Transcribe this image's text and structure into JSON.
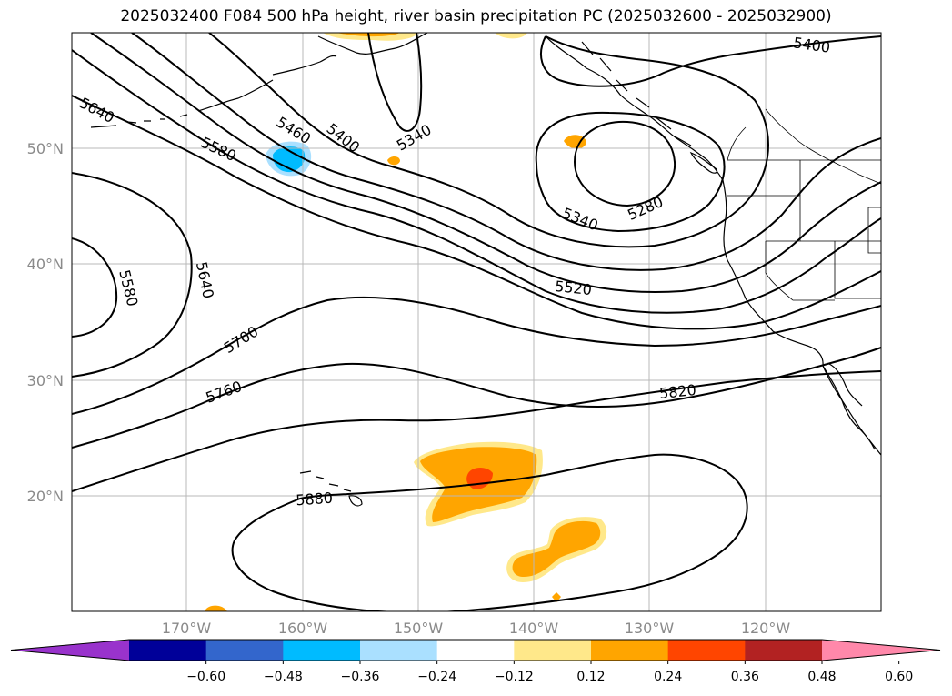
{
  "title": "2025032400 F084 500 hPa height, river basin precipitation PC (2025032600 - 2025032900)",
  "map": {
    "lat_labels": [
      "50°N",
      "40°N",
      "30°N",
      "20°N"
    ],
    "lon_labels": [
      "170°W",
      "160°W",
      "150°W",
      "140°W",
      "130°W",
      "120°W"
    ],
    "contour_labels": [
      "5400",
      "5640",
      "5460",
      "5400",
      "5340",
      "5580",
      "5280",
      "5340",
      "5520",
      "5580",
      "5640",
      "5700",
      "5760",
      "5820",
      "5880"
    ]
  },
  "colorbar": {
    "ticks": [
      "−0.60",
      "−0.48",
      "−0.36",
      "−0.24",
      "−0.12",
      "0.12",
      "0.24",
      "0.36",
      "0.48",
      "0.60"
    ],
    "colors": [
      "#9933cc",
      "#000099",
      "#3366cc",
      "#00bbff",
      "#aae0ff",
      "#ffffff",
      "#ffe88a",
      "#ffa500",
      "#ff4500",
      "#b22222",
      "#ff88aa"
    ]
  }
}
